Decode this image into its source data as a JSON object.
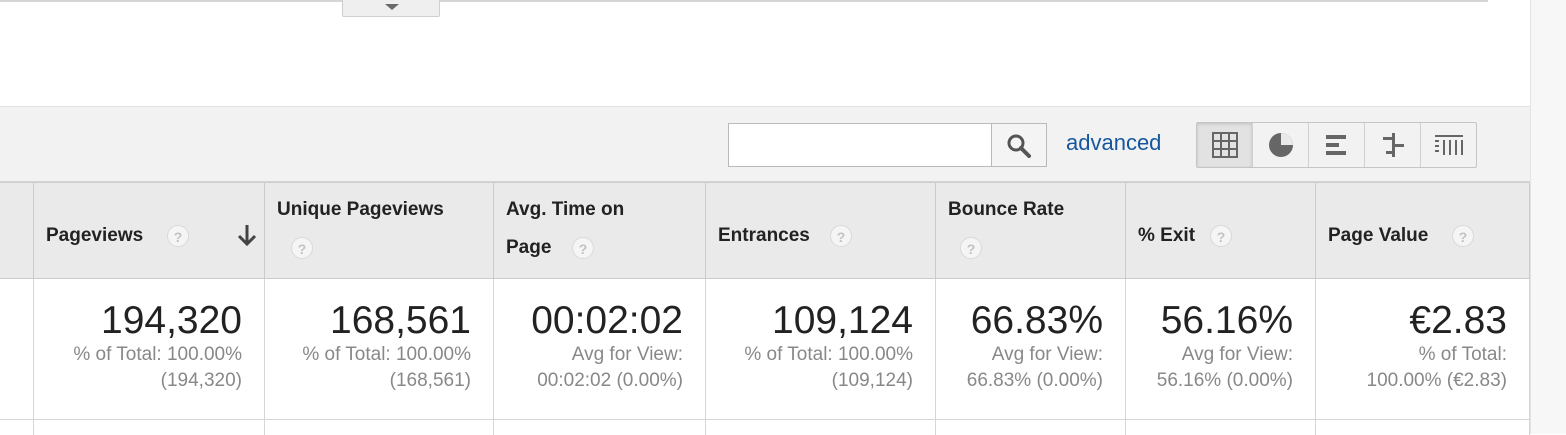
{
  "toolbar": {
    "search": {
      "value": "",
      "placeholder": ""
    },
    "advanced_label": "advanced",
    "views": [
      "table-view-icon",
      "pie-view-icon",
      "performance-view-icon",
      "comparison-view-icon",
      "pivot-view-icon"
    ]
  },
  "table": {
    "columns": [
      {
        "title": "Pageviews",
        "total": "194,320",
        "sub1": "% of Total: 100.00%",
        "sub2": "(194,320)"
      },
      {
        "title": "Unique Pageviews",
        "total": "168,561",
        "sub1": "% of Total: 100.00%",
        "sub2": "(168,561)"
      },
      {
        "title_line1": "Avg. Time on",
        "title_line2": "Page",
        "total": "00:02:02",
        "sub1": "Avg for View:",
        "sub2": "00:02:02 (0.00%)"
      },
      {
        "title": "Entrances",
        "total": "109,124",
        "sub1": "% of Total: 100.00%",
        "sub2": "(109,124)"
      },
      {
        "title": "Bounce Rate",
        "total": "66.83%",
        "sub1": "Avg for View:",
        "sub2": "66.83% (0.00%)"
      },
      {
        "title": "% Exit",
        "total": "56.16%",
        "sub1": "Avg for View:",
        "sub2": "56.16% (0.00%)"
      },
      {
        "title": "Page Value",
        "total": "€2.83",
        "sub1": "% of Total:",
        "sub2": "100.00% (€2.83)"
      }
    ],
    "help_glyph": "?"
  },
  "colors": {
    "link": "#15579e",
    "header_bg": "#eaeaea",
    "toolbar_bg": "#f2f2f2"
  }
}
